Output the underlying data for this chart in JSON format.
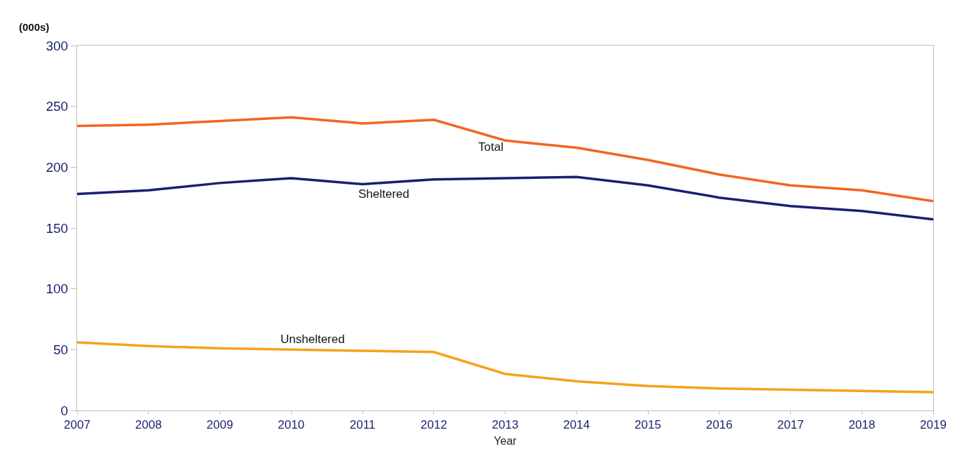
{
  "chart_data": {
    "type": "line",
    "ylabel": "(000s)",
    "xlabel": "Year",
    "x": [
      2007,
      2008,
      2009,
      2010,
      2011,
      2012,
      2013,
      2014,
      2015,
      2016,
      2017,
      2018,
      2019
    ],
    "series": [
      {
        "name": "Total",
        "color": "#f26522",
        "values": [
          234,
          235,
          238,
          241,
          236,
          239,
          222,
          216,
          206,
          194,
          185,
          181,
          172
        ]
      },
      {
        "name": "Sheltered",
        "color": "#1a1f71",
        "values": [
          178,
          181,
          187,
          191,
          186,
          190,
          191,
          192,
          185,
          175,
          168,
          164,
          157
        ]
      },
      {
        "name": "Unsheltered",
        "color": "#f7a11a",
        "values": [
          56,
          53,
          51,
          50,
          49,
          48,
          30,
          24,
          20,
          18,
          17,
          16,
          15
        ]
      }
    ],
    "xlim": [
      2007,
      2019
    ],
    "xticks": [
      2007,
      2008,
      2009,
      2010,
      2011,
      2012,
      2013,
      2014,
      2015,
      2016,
      2017,
      2018,
      2019
    ],
    "ylim": [
      0,
      300
    ],
    "yticks": [
      0,
      50,
      100,
      150,
      200,
      250,
      300
    ],
    "marker": "none",
    "line_style": "solid"
  }
}
